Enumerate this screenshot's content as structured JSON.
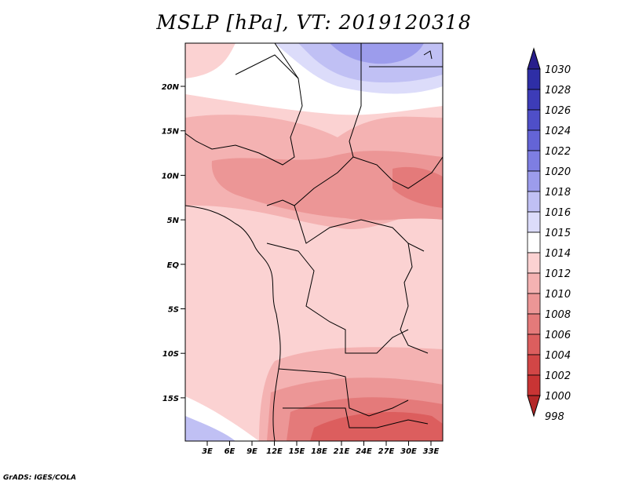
{
  "title": "MSLP [hPa], VT: 2019120318",
  "credit": "GrADS: IGES/COLA",
  "lat_ticks": [
    "20N",
    "15N",
    "10N",
    "5N",
    "EQ",
    "5S",
    "10S",
    "15S"
  ],
  "lon_ticks": [
    "3E",
    "6E",
    "9E",
    "12E",
    "15E",
    "18E",
    "21E",
    "24E",
    "27E",
    "30E",
    "33E"
  ],
  "colorbar": {
    "levels": [
      "1030",
      "1028",
      "1026",
      "1024",
      "1022",
      "1020",
      "1018",
      "1016",
      "1015",
      "1014",
      "1012",
      "1010",
      "1008",
      "1006",
      "1004",
      "1002",
      "1000",
      "998"
    ],
    "colors": [
      "#281e8c",
      "#2e2ea6",
      "#3d3cb8",
      "#4f4fc8",
      "#6464d6",
      "#7e7ee2",
      "#9c9cec",
      "#c0c0f4",
      "#dcdcfa",
      "#ffffff",
      "#fbd2d2",
      "#f4b2b2",
      "#ec9696",
      "#e47a7a",
      "#dc5e5e",
      "#d24646",
      "#c83434",
      "#b42828"
    ]
  }
}
